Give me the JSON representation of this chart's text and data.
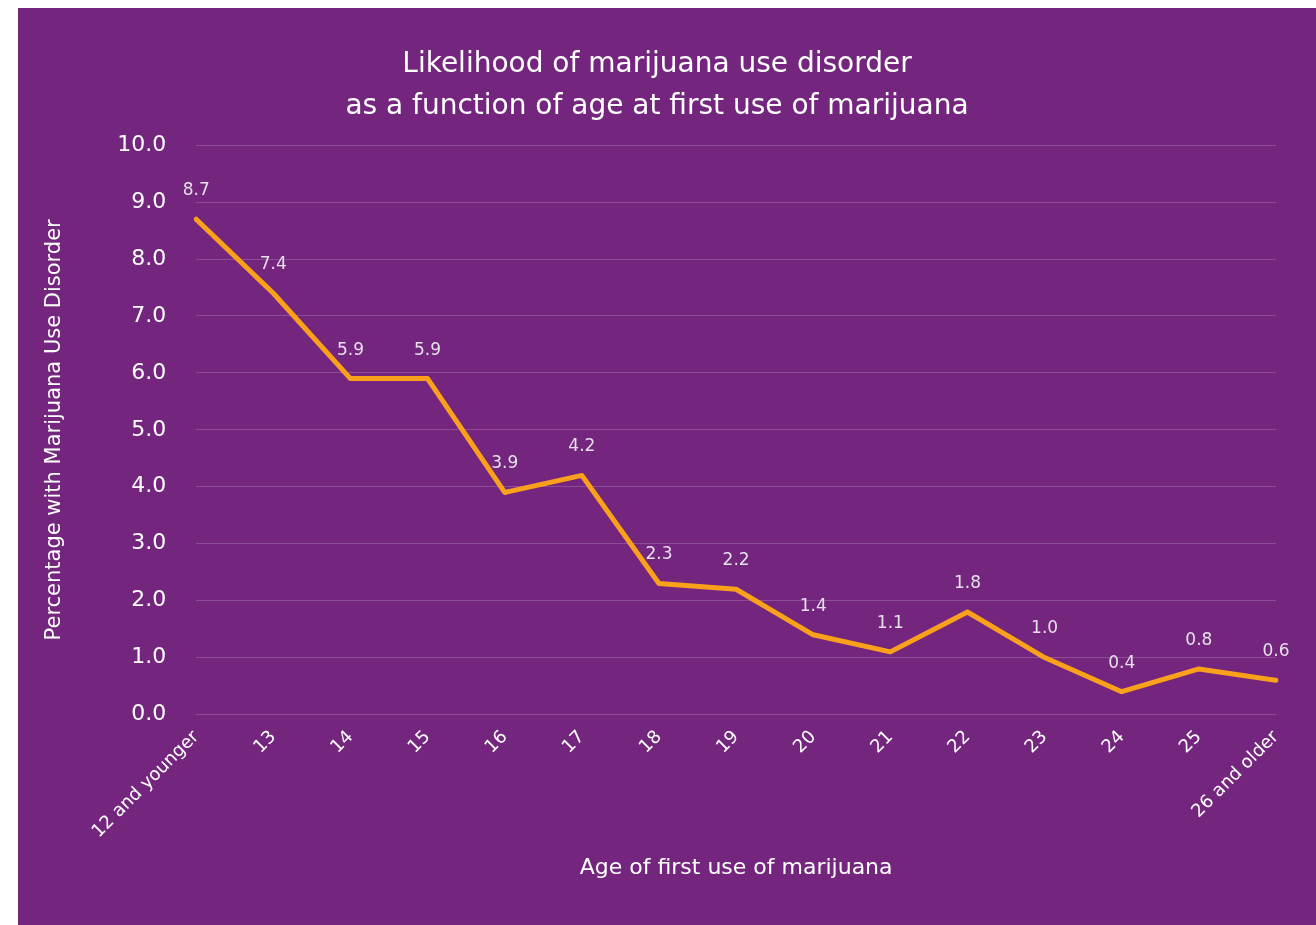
{
  "chart_data": {
    "type": "line",
    "title": "Likelihood of marijuana use disorder",
    "subtitle": "as a function of age at first use of marijuana",
    "xlabel": "Age of first use of marijuana",
    "ylabel": "Percentage with Marijuana Use Disorder",
    "categories": [
      "12 and younger",
      "13",
      "14",
      "15",
      "16",
      "17",
      "18",
      "19",
      "20",
      "21",
      "22",
      "23",
      "24",
      "25",
      "26 and older"
    ],
    "series": [
      {
        "color": "#f9a11b",
        "values": [
          8.7,
          7.4,
          5.9,
          5.9,
          3.9,
          4.2,
          2.3,
          2.2,
          1.4,
          1.1,
          1.8,
          1.0,
          0.4,
          0.8,
          0.6
        ],
        "value_labels": [
          "8.7",
          "7.4",
          "5.9",
          "5.9",
          "3.9",
          "4.2",
          "2.3",
          "2.2",
          "1.4",
          "1.1",
          "1.8",
          "1.0",
          "0.4",
          "0.8",
          "0.6"
        ]
      }
    ],
    "ylim": [
      0,
      10
    ],
    "yticks": [
      {
        "value": 0,
        "label": "0.0"
      },
      {
        "value": 1,
        "label": "1.0"
      },
      {
        "value": 2,
        "label": "2.0"
      },
      {
        "value": 3,
        "label": "3.0"
      },
      {
        "value": 4,
        "label": "4.0"
      },
      {
        "value": 5,
        "label": "5.0"
      },
      {
        "value": 6,
        "label": "6.0"
      },
      {
        "value": 7,
        "label": "7.0"
      },
      {
        "value": 8,
        "label": "8.0"
      },
      {
        "value": 9,
        "label": "9.0"
      },
      {
        "value": 10,
        "label": "10.0"
      }
    ],
    "grid": "y",
    "legend": false,
    "marker": "none",
    "line_style": "solid"
  }
}
